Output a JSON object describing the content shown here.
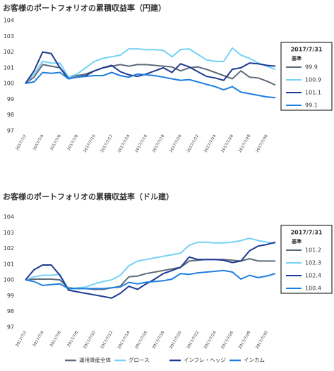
{
  "chart_data": [
    {
      "type": "line",
      "title": "お客様のポートフォリオの累積収益率（円建）",
      "categories": [
        "2017/7/2",
        null,
        "2017/7/4",
        null,
        "2017/7/6",
        null,
        "2017/7/8",
        null,
        "2017/7/10",
        null,
        "2017/7/12",
        null,
        "2017/7/14",
        null,
        "2017/7/16",
        null,
        "2017/7/18",
        null,
        "2017/7/20",
        null,
        "2017/7/22",
        null,
        "2017/7/24",
        null,
        "2017/7/26",
        null,
        "2017/7/28",
        null,
        "2017/7/30",
        null
      ],
      "ylim": [
        97,
        104
      ],
      "yticks": [
        97,
        98,
        99,
        100,
        101,
        102,
        103,
        104
      ],
      "grid": false,
      "legend_date": "2017/7/31",
      "legend_label": "基準",
      "series": [
        {
          "name": "運用資産全体",
          "color": "#5f6b7a",
          "values": [
            100,
            100.4,
            101.2,
            101.1,
            101.0,
            100.4,
            100.5,
            100.6,
            100.8,
            101.0,
            101.1,
            101.2,
            101.1,
            101.2,
            101.2,
            101.15,
            101.1,
            101.05,
            100.8,
            101.0,
            101.05,
            100.9,
            100.7,
            100.5,
            100.3,
            100.8,
            100.4,
            100.35,
            100.15,
            99.9
          ]
        },
        {
          "name": "グロース",
          "color": "#74d2f5",
          "values": [
            100,
            100.6,
            101.4,
            101.3,
            101.3,
            100.4,
            100.6,
            101.0,
            101.4,
            101.6,
            101.7,
            101.8,
            102.2,
            102.2,
            102.15,
            102.15,
            102.1,
            101.7,
            102.15,
            102.2,
            101.85,
            101.5,
            101.4,
            101.4,
            102.25,
            101.8,
            101.6,
            101.3,
            101.1,
            100.9
          ]
        },
        {
          "name": "インフレ・ヘッジ",
          "color": "#1f3a93",
          "values": [
            100,
            100.8,
            102.0,
            101.9,
            101.0,
            100.3,
            100.4,
            100.5,
            100.8,
            101.0,
            101.15,
            100.75,
            100.55,
            100.45,
            100.6,
            100.8,
            101.0,
            100.7,
            101.25,
            101.05,
            100.75,
            100.45,
            100.35,
            100.2,
            100.9,
            101.0,
            101.3,
            101.25,
            101.15,
            101.1
          ]
        },
        {
          "name": "インカム",
          "color": "#1e7fe0",
          "values": [
            100,
            100.1,
            100.7,
            100.65,
            100.7,
            100.3,
            100.4,
            100.45,
            100.5,
            100.5,
            100.7,
            100.5,
            100.4,
            100.6,
            100.55,
            100.5,
            100.4,
            100.3,
            100.2,
            100.25,
            100.1,
            99.95,
            99.8,
            99.6,
            99.8,
            99.45,
            99.35,
            99.25,
            99.15,
            99.1
          ]
        }
      ]
    },
    {
      "type": "line",
      "title": "お客様のポートフォリオの累積収益率（ドル建）",
      "categories": [
        "2017/7/2",
        null,
        "2017/7/4",
        null,
        "2017/7/6",
        null,
        "2017/7/8",
        null,
        "2017/7/10",
        null,
        "2017/7/12",
        null,
        "2017/7/14",
        null,
        "2017/7/16",
        null,
        "2017/7/18",
        null,
        "2017/7/20",
        null,
        "2017/7/22",
        null,
        "2017/7/24",
        null,
        "2017/7/26",
        null,
        "2017/7/28",
        null,
        "2017/7/30",
        null
      ],
      "ylim": [
        97,
        104
      ],
      "yticks": [
        97,
        98,
        99,
        100,
        101,
        102,
        103,
        104
      ],
      "grid": false,
      "legend_date": "2017/7/31",
      "legend_label": "基準",
      "series": [
        {
          "name": "運用資産全体",
          "color": "#5f6b7a",
          "values": [
            100,
            100.05,
            100.05,
            100.05,
            100.0,
            99.5,
            99.45,
            99.45,
            99.4,
            99.4,
            99.5,
            99.6,
            100.2,
            100.25,
            100.4,
            100.5,
            100.6,
            100.7,
            100.8,
            101.2,
            101.25,
            101.3,
            101.3,
            101.3,
            101.25,
            101.2,
            101.35,
            101.2,
            101.2,
            101.2
          ]
        },
        {
          "name": "グロース",
          "color": "#74d2f5",
          "values": [
            100,
            100.2,
            100.3,
            100.3,
            100.35,
            99.4,
            99.5,
            99.55,
            99.75,
            99.9,
            100.0,
            100.3,
            100.9,
            101.2,
            101.3,
            101.4,
            101.5,
            101.6,
            101.7,
            102.2,
            102.4,
            102.4,
            102.35,
            102.35,
            102.4,
            102.5,
            102.65,
            102.5,
            102.4,
            102.3
          ]
        },
        {
          "name": "インフレ・ヘッジ",
          "color": "#1f3a93",
          "values": [
            100,
            100.65,
            100.95,
            100.95,
            100.3,
            99.35,
            99.25,
            99.15,
            99.05,
            98.95,
            98.85,
            99.15,
            99.6,
            99.4,
            99.75,
            100.05,
            100.4,
            100.6,
            100.8,
            101.45,
            101.3,
            101.3,
            101.3,
            101.25,
            101.1,
            101.2,
            101.85,
            102.15,
            102.25,
            102.4
          ]
        },
        {
          "name": "インカム",
          "color": "#1e7fe0",
          "values": [
            100,
            99.9,
            99.65,
            99.7,
            99.75,
            99.45,
            99.45,
            99.45,
            99.45,
            99.45,
            99.5,
            99.55,
            99.85,
            99.75,
            99.85,
            99.9,
            99.95,
            100.05,
            100.4,
            100.35,
            100.45,
            100.5,
            100.55,
            100.6,
            100.5,
            100.05,
            100.3,
            100.15,
            100.25,
            100.4
          ]
        }
      ]
    }
  ]
}
